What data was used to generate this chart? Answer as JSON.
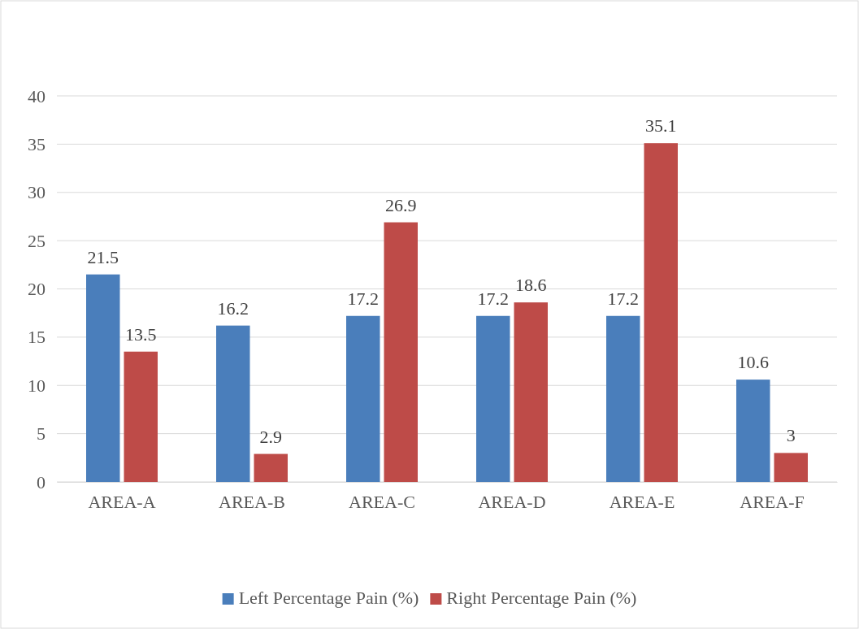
{
  "chart_data": {
    "type": "bar",
    "categories": [
      "AREA-A",
      "AREA-B",
      "AREA-C",
      "AREA-D",
      "AREA-E",
      "AREA-F"
    ],
    "series": [
      {
        "name": "Left Percentage Pain (%)",
        "color": "#4a7ebb",
        "values": [
          21.5,
          16.2,
          17.2,
          17.2,
          17.2,
          10.6
        ]
      },
      {
        "name": "Right Percentage Pain (%)",
        "color": "#be4b48",
        "values": [
          13.5,
          2.9,
          26.9,
          18.6,
          35.1,
          3
        ]
      }
    ],
    "ylim": [
      0,
      40
    ],
    "yticks": [
      0,
      5,
      10,
      15,
      20,
      25,
      30,
      35,
      40
    ],
    "grid": "y",
    "legend": "bottom",
    "data_labels": true
  }
}
